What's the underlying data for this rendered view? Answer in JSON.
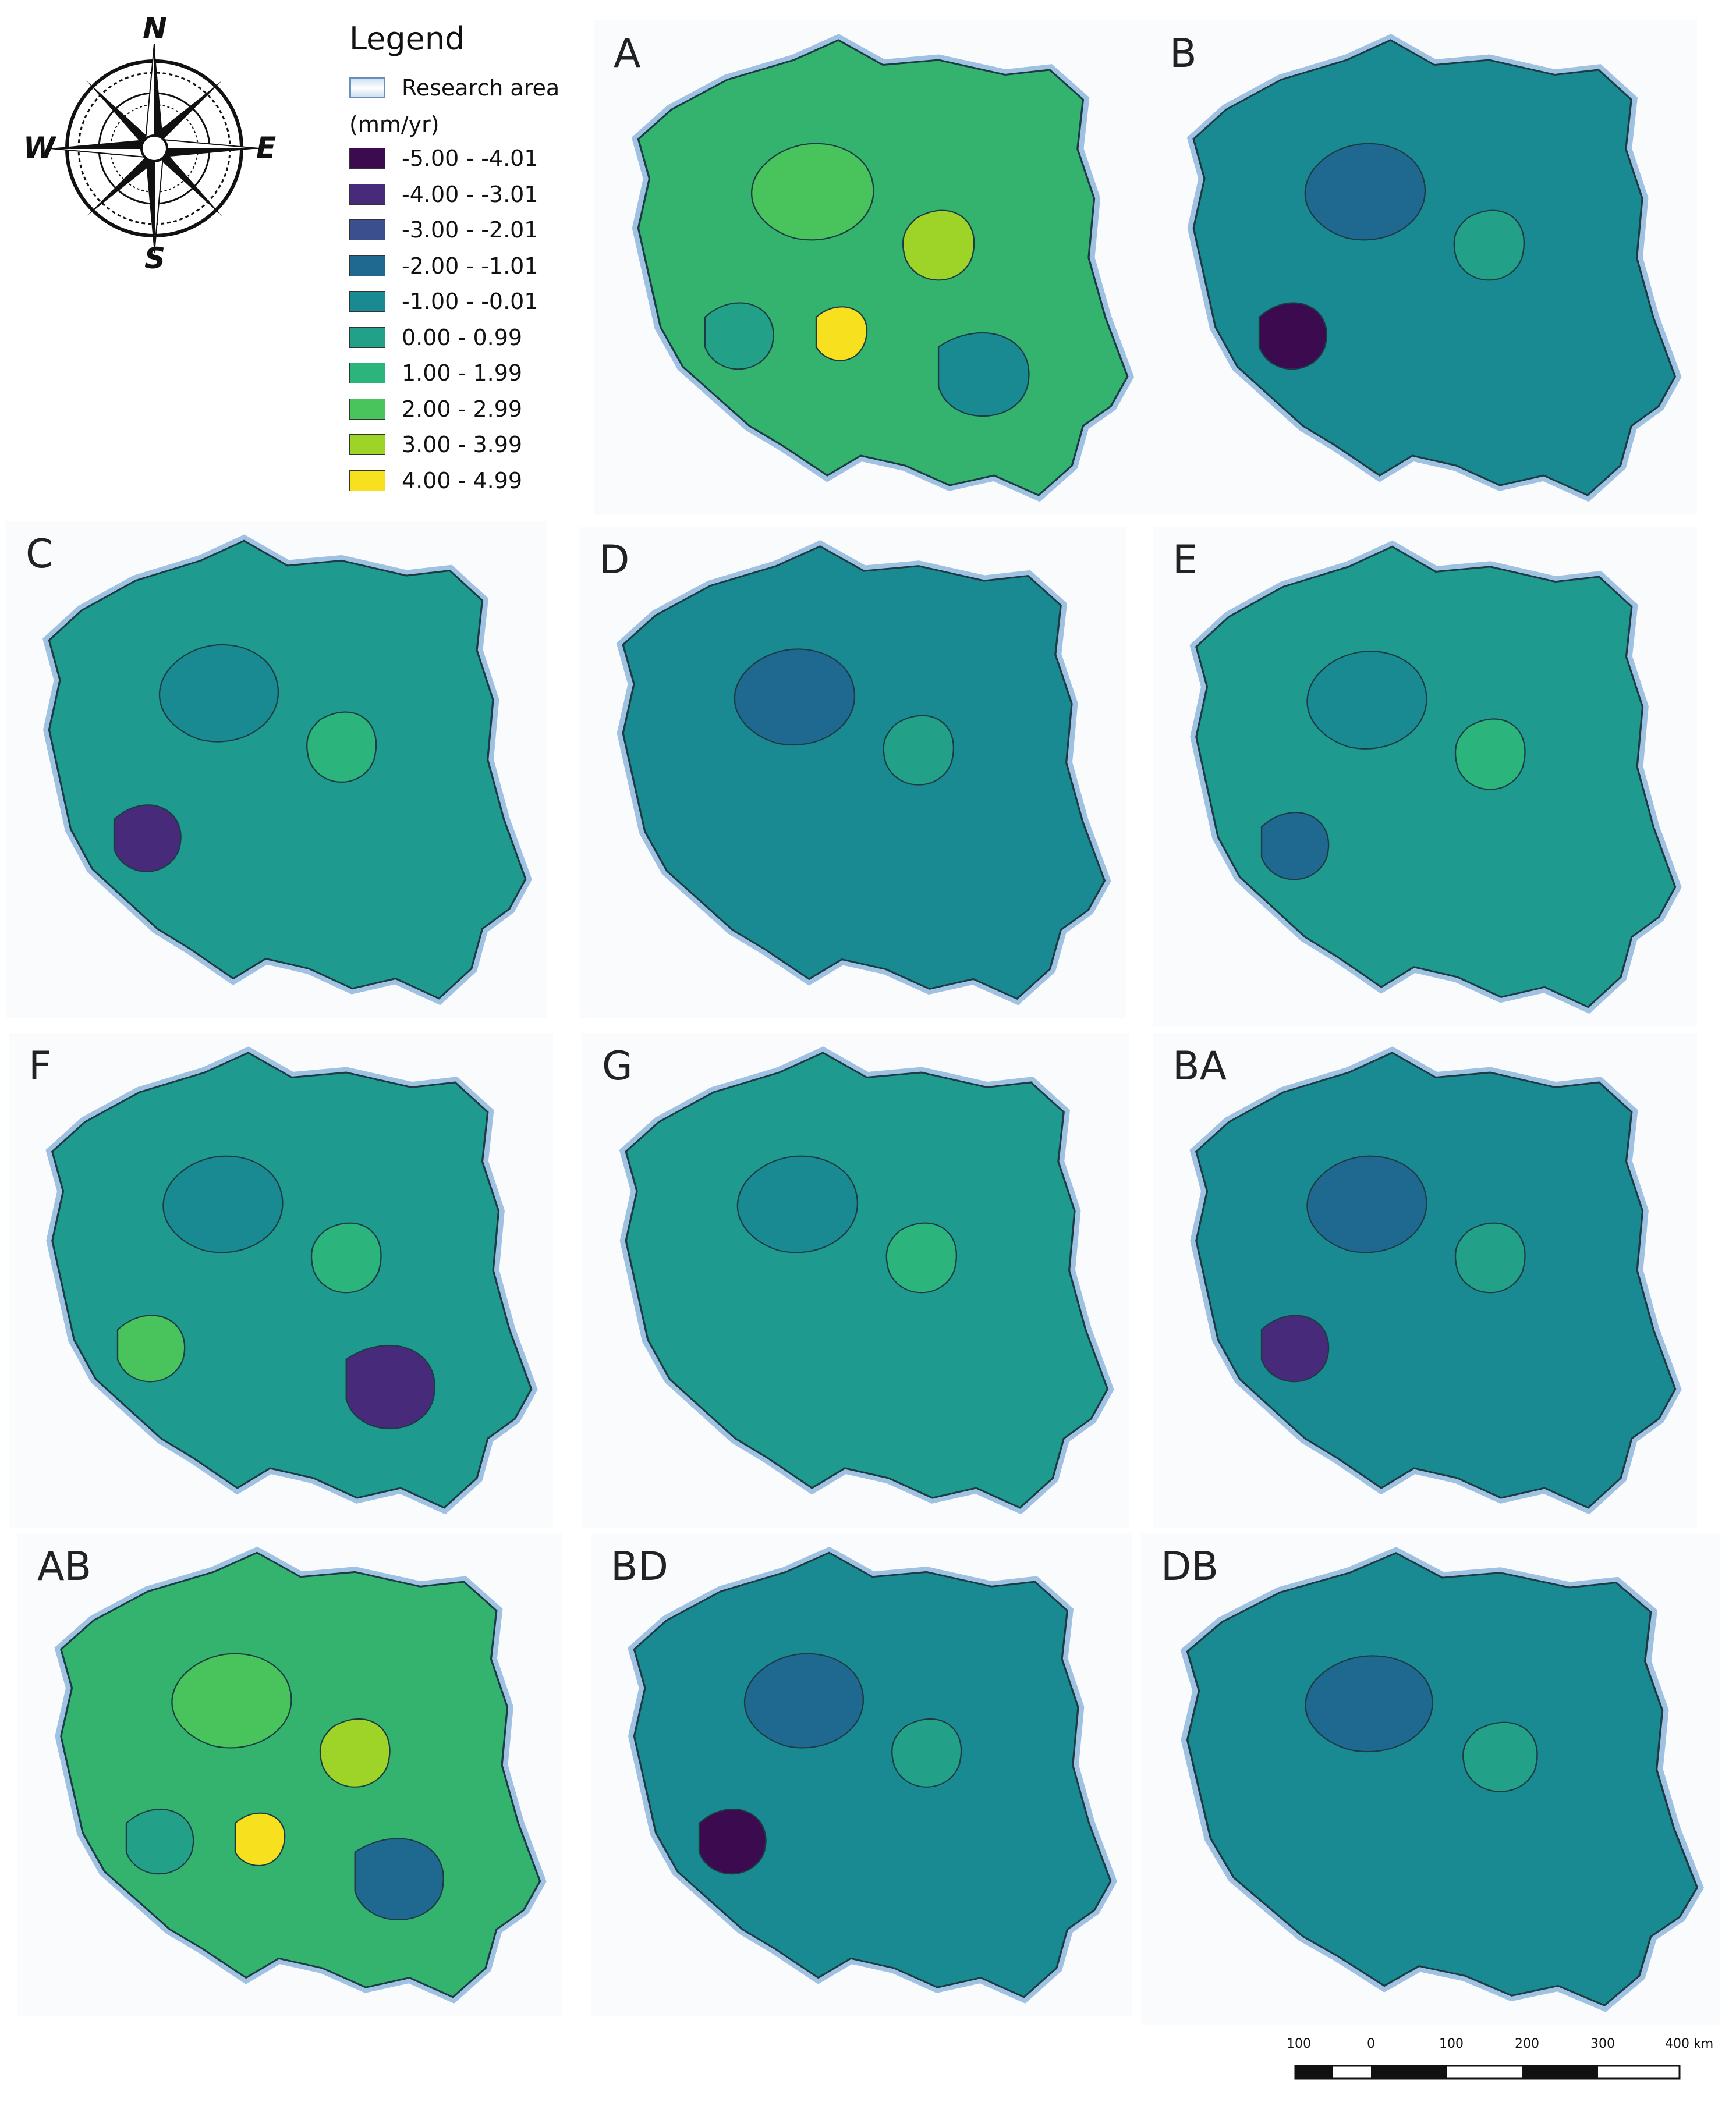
{
  "compass": {
    "north": "N",
    "south": "S",
    "east": "E",
    "west": "W"
  },
  "legend": {
    "title": "Legend",
    "research_area_label": "Research area",
    "unit": "(mm/yr)",
    "classes": [
      {
        "label": "-5.00 - -4.01",
        "color": "#3b0a4f"
      },
      {
        "label": "-4.00 - -3.01",
        "color": "#472a7a"
      },
      {
        "label": "-3.00 - -2.01",
        "color": "#3b4f8f"
      },
      {
        "label": "-2.00 - -1.01",
        "color": "#1f6890"
      },
      {
        "label": "-1.00 - -0.01",
        "color": "#1a8a92"
      },
      {
        "label": "0.00 - 0.99",
        "color": "#22a088"
      },
      {
        "label": "1.00 - 1.99",
        "color": "#2bb47c"
      },
      {
        "label": "2.00 - 2.99",
        "color": "#49c35c"
      },
      {
        "label": "3.00 - 3.99",
        "color": "#9ed427"
      },
      {
        "label": "4.00 - 4.99",
        "color": "#f7e11f"
      }
    ]
  },
  "panels": [
    {
      "label": "A",
      "base": "#33b36e",
      "patches": [
        "#49c35c",
        "#9ed427",
        "#22a088",
        "#1a8a92",
        "#f7e11f"
      ]
    },
    {
      "label": "B",
      "base": "#1a8a92",
      "patches": [
        "#1f6890",
        "#22a088",
        "#3b0a4f"
      ]
    },
    {
      "label": "C",
      "base": "#1f9a8e",
      "patches": [
        "#1a8a92",
        "#2bb47c",
        "#472a7a"
      ]
    },
    {
      "label": "D",
      "base": "#1a8a92",
      "patches": [
        "#1f6890",
        "#22a088"
      ]
    },
    {
      "label": "E",
      "base": "#1f9a8e",
      "patches": [
        "#1a8a92",
        "#2bb47c",
        "#1f6890"
      ]
    },
    {
      "label": "F",
      "base": "#1f9a8e",
      "patches": [
        "#1a8a92",
        "#2bb47c",
        "#49c35c",
        "#472a7a"
      ]
    },
    {
      "label": "G",
      "base": "#1f9a8e",
      "patches": [
        "#1a8a92",
        "#2bb47c"
      ]
    },
    {
      "label": "BA",
      "base": "#1a8a92",
      "patches": [
        "#1f6890",
        "#22a088",
        "#472a7a"
      ]
    },
    {
      "label": "AB",
      "base": "#33b36e",
      "patches": [
        "#49c35c",
        "#9ed427",
        "#22a088",
        "#1f6890",
        "#f7e11f"
      ]
    },
    {
      "label": "BD",
      "base": "#1a8a92",
      "patches": [
        "#1f6890",
        "#22a088",
        "#3b0a4f"
      ]
    },
    {
      "label": "DB",
      "base": "#1a8a92",
      "patches": [
        "#1f6890",
        "#22a088"
      ]
    }
  ],
  "scale_bar": {
    "ticks": [
      "100",
      "0",
      "100",
      "200",
      "300",
      "400 km"
    ]
  }
}
